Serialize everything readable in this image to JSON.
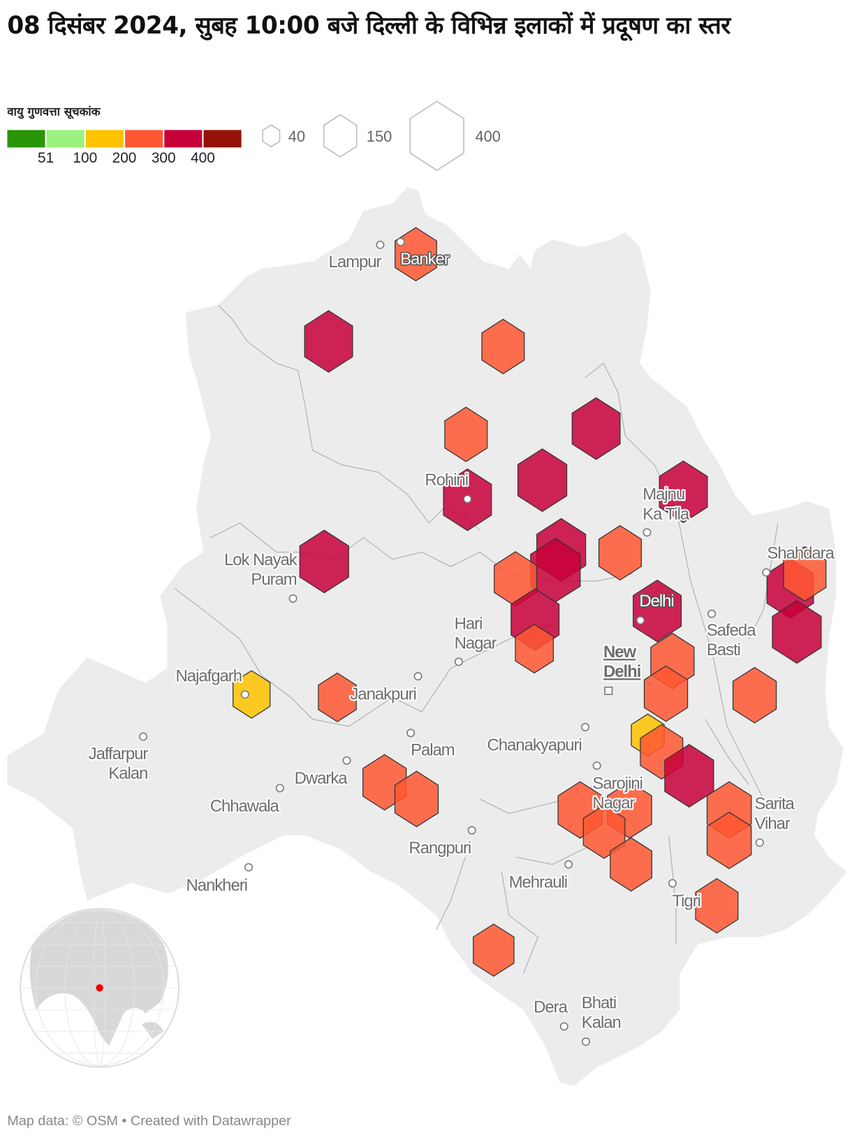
{
  "title": "08 दिसंबर 2024, सुबह 10:00 बजे दिल्ली के विभिन्न इलाकों में प्रदूषण का स्तर",
  "legend": {
    "title": "वायु गुणवत्ता सूचकांक",
    "colors": [
      "#2a9508",
      "#9cf27e",
      "#ffc300",
      "#ff5733",
      "#c70039",
      "#941208"
    ],
    "ticks": [
      "51",
      "100",
      "200",
      "300",
      "400"
    ],
    "size_values": [
      "40",
      "150",
      "400"
    ]
  },
  "places": [
    {
      "name": "Lampur"
    },
    {
      "name": "Banker"
    },
    {
      "name": "Rohini"
    },
    {
      "name": "Majnu Ka Tila"
    },
    {
      "name": "Lok Nayak Puram"
    },
    {
      "name": "Shahdara"
    },
    {
      "name": "Delhi"
    },
    {
      "name": "Hari Nagar"
    },
    {
      "name": "Safeda Basti"
    },
    {
      "name": "New Delhi"
    },
    {
      "name": "Najafgarh"
    },
    {
      "name": "Janakpuri"
    },
    {
      "name": "Jaffarpur Kalan"
    },
    {
      "name": "Palam"
    },
    {
      "name": "Chanakyapuri"
    },
    {
      "name": "Dwarka"
    },
    {
      "name": "Chhawala"
    },
    {
      "name": "Sarojini Nagar"
    },
    {
      "name": "Sarita Vihar"
    },
    {
      "name": "Rangpuri"
    },
    {
      "name": "Mehrauli"
    },
    {
      "name": "Nankheri"
    },
    {
      "name": "Tigri"
    },
    {
      "name": "Dera"
    },
    {
      "name": "Bhati Kalan"
    }
  ],
  "stations_aqi": [
    240,
    320,
    250,
    320,
    250,
    330,
    320,
    320,
    330,
    330,
    340,
    250,
    250,
    320,
    320,
    300,
    250,
    330,
    200,
    260,
    260,
    260,
    190,
    200,
    150,
    250,
    330,
    260,
    260,
    270,
    270,
    240,
    270,
    270,
    240,
    250,
    230
  ],
  "footer": "Map data: © OSM  • Created with Datawrapper"
}
